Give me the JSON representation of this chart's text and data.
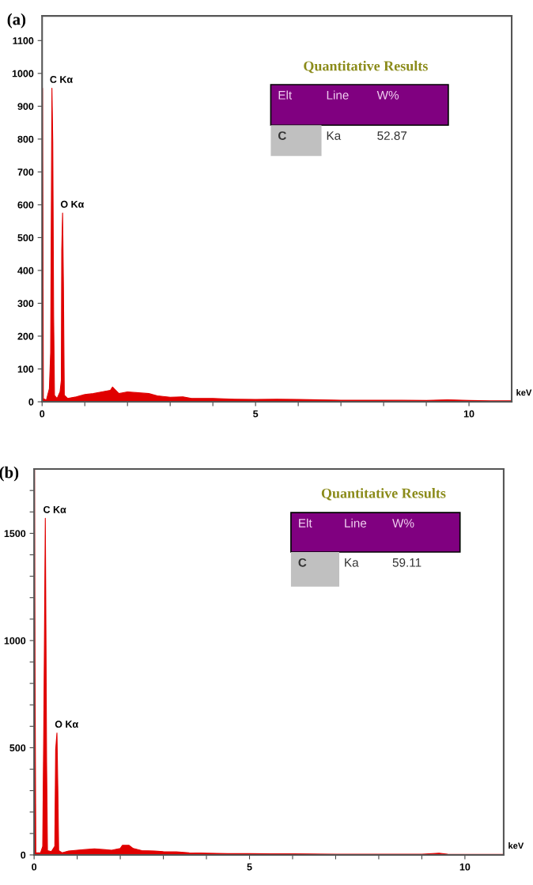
{
  "chart_data": [
    {
      "type": "area",
      "title": "(a)",
      "xlabel": "keV",
      "x": [
        0,
        0.01,
        0.03,
        0.1,
        0.17,
        0.2,
        0.23,
        0.25,
        0.27,
        0.29,
        0.35,
        0.42,
        0.45,
        0.46,
        0.48,
        0.5,
        0.52,
        0.6,
        0.8,
        1.0,
        1.2,
        1.4,
        1.6,
        1.65,
        1.7,
        1.8,
        2.0,
        2.2,
        2.5,
        2.7,
        3.0,
        3.3,
        3.5,
        4.0,
        4.5,
        5.0,
        5.5,
        6.0,
        7.0,
        8.0,
        9.0,
        9.5,
        10.0,
        10.5,
        11.0
      ],
      "series": [
        {
          "color": "#e00000",
          "values": [
            60,
            955,
            10,
            5,
            40,
            150,
            955,
            790,
            260,
            20,
            10,
            30,
            65,
            460,
            575,
            350,
            20,
            10,
            15,
            22,
            25,
            30,
            35,
            45,
            38,
            25,
            30,
            28,
            25,
            18,
            14,
            15,
            10,
            10,
            8,
            7,
            8,
            7,
            5,
            5,
            4,
            6,
            4,
            3,
            3
          ]
        }
      ],
      "xlim": [
        0,
        11.0
      ],
      "ylim": [
        0,
        1175
      ],
      "xticks": [
        0,
        {
          "value": 1,
          "label": null
        },
        {
          "value": 2,
          "label": null
        },
        {
          "value": 3,
          "label": null
        },
        {
          "value": 4,
          "label": null
        },
        5,
        {
          "value": 6,
          "label": null
        },
        {
          "value": 7,
          "label": null
        },
        {
          "value": 8,
          "label": null
        },
        {
          "value": 9,
          "label": null
        },
        10
      ],
      "yticks": [
        0,
        100,
        200,
        300,
        400,
        500,
        600,
        700,
        800,
        900,
        1000,
        1100
      ],
      "annotations": [
        {
          "text": "C Kα",
          "x": 0.23,
          "y": 955
        },
        {
          "text": "O Kα",
          "x": 0.48,
          "y": 575
        },
        "Quantitative Results",
        "Elt",
        "Line",
        "W%",
        "C",
        "Ka",
        "52.87"
      ],
      "grid": false
    },
    {
      "type": "area",
      "title": "(b)",
      "xlabel": "keV",
      "x": [
        0,
        0.01,
        0.02,
        0.04,
        0.15,
        0.2,
        0.23,
        0.26,
        0.27,
        0.29,
        0.31,
        0.4,
        0.48,
        0.5,
        0.53,
        0.55,
        0.57,
        0.65,
        0.8,
        1.0,
        1.2,
        1.4,
        1.6,
        1.8,
        2.0,
        2.05,
        2.2,
        2.3,
        2.5,
        2.8,
        3.0,
        3.3,
        3.6,
        4.0,
        4.5,
        5.0,
        5.5,
        6.0,
        7.0,
        8.0,
        9.0,
        9.4,
        9.6,
        10.0,
        10.9
      ],
      "series": [
        {
          "color": "#e00000",
          "values": [
            0,
            1800,
            918,
            10,
            10,
            40,
            730,
            1570,
            1215,
            430,
            20,
            15,
            40,
            490,
            569,
            320,
            20,
            10,
            18,
            22,
            25,
            28,
            25,
            22,
            30,
            45,
            45,
            30,
            20,
            18,
            15,
            14,
            10,
            8,
            6,
            6,
            5,
            5,
            3,
            3,
            3,
            8,
            3,
            2,
            2
          ]
        }
      ],
      "xlim": [
        0,
        10.9
      ],
      "ylim": [
        0,
        1800
      ],
      "xticks": [
        0,
        {
          "value": 1,
          "label": null
        },
        {
          "value": 2,
          "label": null
        },
        {
          "value": 3,
          "label": null
        },
        {
          "value": 4,
          "label": null
        },
        5,
        {
          "value": 6,
          "label": null
        },
        {
          "value": 7,
          "label": null
        },
        {
          "value": 8,
          "label": null
        },
        {
          "value": 9,
          "label": null
        },
        10
      ],
      "yticks": [
        0,
        {
          "value": 100,
          "label": null
        },
        {
          "value": 200,
          "label": null
        },
        {
          "value": 300,
          "label": null
        },
        {
          "value": 400,
          "label": null
        },
        500,
        {
          "value": 600,
          "label": null
        },
        {
          "value": 700,
          "label": null
        },
        {
          "value": 800,
          "label": null
        },
        {
          "value": 900,
          "label": null
        },
        1000,
        {
          "value": 1100,
          "label": null
        },
        {
          "value": 1200,
          "label": null
        },
        {
          "value": 1300,
          "label": null
        },
        {
          "value": 1400,
          "label": null
        },
        1500,
        {
          "value": 1600,
          "label": null
        },
        {
          "value": 1700,
          "label": null
        }
      ],
      "annotations": [
        {
          "text": "C Kα",
          "x": 0.26,
          "y": 1570
        },
        {
          "text": "O Kα",
          "x": 0.53,
          "y": 569
        },
        "Quantitative Results",
        "Elt",
        "Line",
        "W%",
        "C",
        "Ka",
        "59.11"
      ],
      "grid": false
    }
  ]
}
